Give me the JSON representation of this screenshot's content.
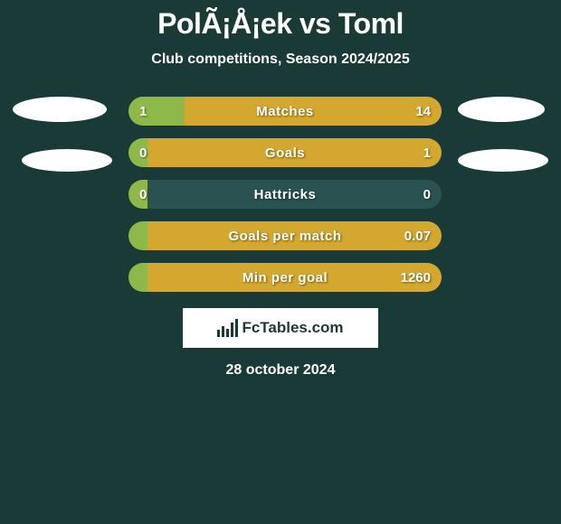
{
  "title": "PolÃ¡Å¡ek vs Toml",
  "subtitle": "Club competitions, Season 2024/2025",
  "footnote": "28 october 2024",
  "logo_text": "FcTables.com",
  "colors": {
    "background": "#1a3a38",
    "left_bar": "#8fb84a",
    "right_bar_default": "#2a5250",
    "right_bar_win": "#d4a82e",
    "text": "#ffffff",
    "avatar": "#ffffff"
  },
  "stats": [
    {
      "label": "Matches",
      "left_value": "1",
      "right_value": "14",
      "left_pct": 18,
      "right_color": "#d4a82e"
    },
    {
      "label": "Goals",
      "left_value": "0",
      "right_value": "1",
      "left_pct": 6,
      "right_color": "#d4a82e"
    },
    {
      "label": "Hattricks",
      "left_value": "0",
      "right_value": "0",
      "left_pct": 6,
      "right_color": "#2a5250"
    },
    {
      "label": "Goals per match",
      "left_value": "",
      "right_value": "0.07",
      "left_pct": 6,
      "right_color": "#d4a82e"
    },
    {
      "label": "Min per goal",
      "left_value": "",
      "right_value": "1260",
      "left_pct": 6,
      "right_color": "#d4a82e"
    }
  ]
}
